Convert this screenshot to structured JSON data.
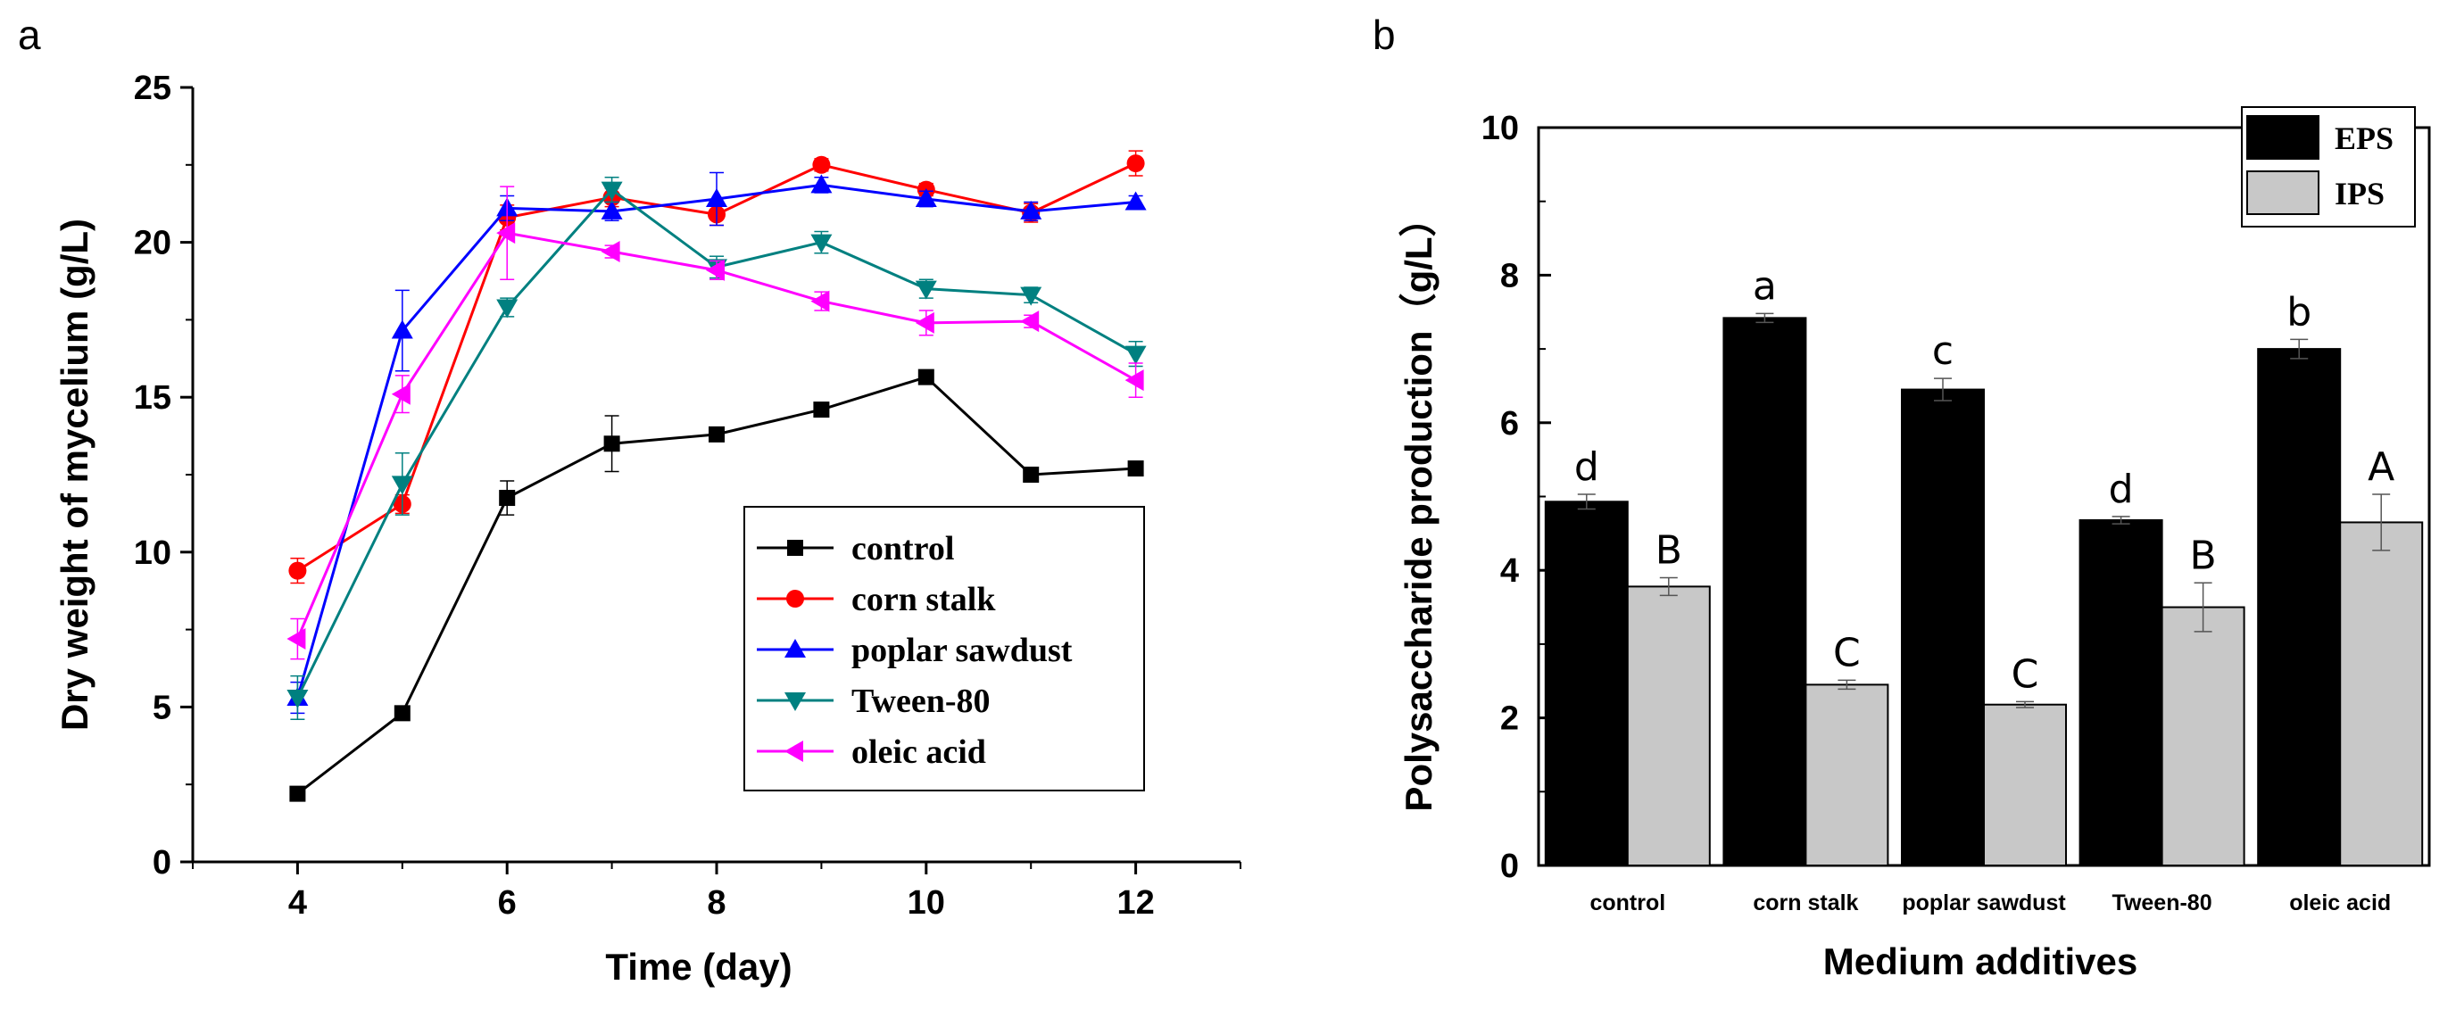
{
  "chart_data": [
    {
      "panel": "a",
      "type": "line",
      "xlabel": "Time (day)",
      "ylabel": "Dry weight of mycelium (g/L)",
      "xlim": [
        3,
        13
      ],
      "ylim": [
        0,
        25
      ],
      "xticks": [
        4,
        6,
        8,
        10,
        12
      ],
      "yticks": [
        0,
        5,
        10,
        15,
        20,
        25
      ],
      "x": [
        4,
        5,
        6,
        7,
        8,
        9,
        10,
        11,
        12
      ],
      "series": [
        {
          "name": " control",
          "color": "#000000",
          "marker": "square",
          "values": [
            2.2,
            4.8,
            11.75,
            13.5,
            13.8,
            14.6,
            15.65,
            12.5,
            12.7
          ],
          "errors": [
            0.15,
            0.15,
            0.55,
            0.9,
            0.2,
            0.2,
            0.2,
            0.15,
            0.15
          ]
        },
        {
          "name": "corn stalk",
          "color": "#ff0000",
          "marker": "circle",
          "values": [
            9.4,
            11.55,
            20.8,
            21.45,
            20.9,
            22.5,
            21.7,
            20.95,
            22.55
          ],
          "errors": [
            0.4,
            0.3,
            0.4,
            0.3,
            0.35,
            0.2,
            0.2,
            0.3,
            0.4
          ]
        },
        {
          "name": "poplar sawdust",
          "color": "#0000ff",
          "marker": "triangle-up",
          "values": [
            5.3,
            17.15,
            21.1,
            21.0,
            21.4,
            21.85,
            21.4,
            21.0,
            21.3
          ],
          "errors": [
            0.5,
            1.3,
            0.4,
            0.3,
            0.85,
            0.25,
            0.25,
            0.3,
            0.2
          ]
        },
        {
          "name": "Tween-80",
          "color": "#008080",
          "marker": "triangle-down",
          "values": [
            5.3,
            12.2,
            17.9,
            21.7,
            19.2,
            20.0,
            18.5,
            18.3,
            16.4
          ],
          "errors": [
            0.7,
            1.0,
            0.3,
            0.4,
            0.35,
            0.35,
            0.3,
            0.25,
            0.4
          ]
        },
        {
          "name": "oleic acid",
          "color": "#ff00ff",
          "marker": "triangle-left",
          "values": [
            7.2,
            15.1,
            20.3,
            19.7,
            19.1,
            18.1,
            17.4,
            17.45,
            15.55
          ],
          "errors": [
            0.65,
            0.6,
            1.5,
            0.2,
            0.3,
            0.3,
            0.4,
            0.2,
            0.55
          ]
        }
      ],
      "legend_position": "bottom-right"
    },
    {
      "panel": "b",
      "type": "bar",
      "xlabel": "Medium additives",
      "ylabel": "Polysaccharide production（g/L）",
      "ylim": [
        0,
        10
      ],
      "yticks": [
        0,
        2,
        4,
        6,
        8,
        10
      ],
      "categories": [
        "control",
        "corn stalk",
        "poplar sawdust",
        "Tween-80",
        "oleic acid"
      ],
      "series": [
        {
          "name": "EPS",
          "color": "#000000",
          "values": [
            4.93,
            7.42,
            6.45,
            4.68,
            7.0
          ],
          "errors": [
            0.1,
            0.06,
            0.15,
            0.05,
            0.13
          ],
          "significance": [
            "d",
            "a",
            "c",
            "d",
            "b"
          ]
        },
        {
          "name": "IPS",
          "color": "#c8c8c8",
          "values": [
            3.78,
            2.45,
            2.18,
            3.5,
            4.65
          ],
          "errors": [
            0.12,
            0.06,
            0.04,
            0.33,
            0.38
          ],
          "significance": [
            "B",
            "C",
            "C",
            "B",
            "A"
          ]
        }
      ],
      "legend_position": "top-right"
    }
  ],
  "panels": {
    "a": {
      "letter": "a"
    },
    "b": {
      "letter": "b"
    }
  }
}
